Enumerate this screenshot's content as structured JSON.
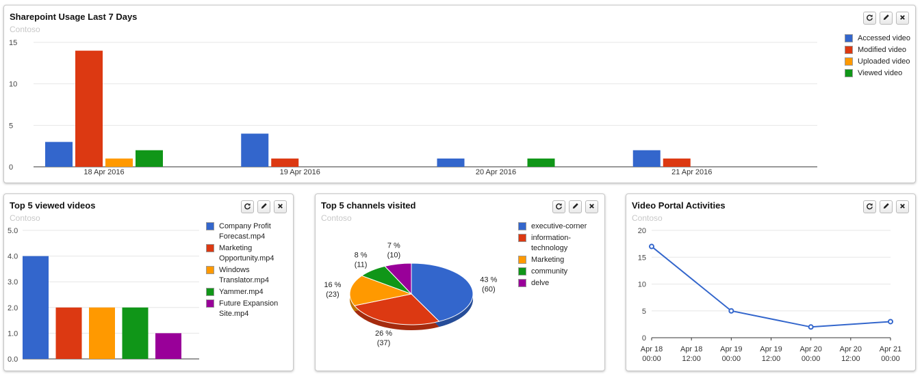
{
  "panels": {
    "usage": {
      "title": "Sharepoint Usage Last 7 Days",
      "subtitle": "Contoso",
      "legend": [
        {
          "label": "Accessed video",
          "color": "#3366cc"
        },
        {
          "label": "Modified video",
          "color": "#dc3912"
        },
        {
          "label": "Uploaded video",
          "color": "#ff9900"
        },
        {
          "label": "Viewed video",
          "color": "#109618"
        }
      ]
    },
    "videos": {
      "title": "Top 5 viewed videos",
      "subtitle": "Contoso",
      "legend": [
        {
          "label": "Company Profit Forecast.mp4",
          "color": "#3366cc"
        },
        {
          "label": "Marketing Opportunity.mp4",
          "color": "#dc3912"
        },
        {
          "label": "Windows Translator.mp4",
          "color": "#ff9900"
        },
        {
          "label": "Yammer.mp4",
          "color": "#109618"
        },
        {
          "label": "Future Expansion Site.mp4",
          "color": "#990099"
        }
      ]
    },
    "channels": {
      "title": "Top 5 channels visited",
      "subtitle": "Contoso",
      "legend": [
        {
          "label": "executive-corner",
          "color": "#3366cc"
        },
        {
          "label": "information-technology",
          "color": "#dc3912"
        },
        {
          "label": "Marketing",
          "color": "#ff9900"
        },
        {
          "label": "community",
          "color": "#109618"
        },
        {
          "label": "delve",
          "color": "#990099"
        }
      ]
    },
    "activities": {
      "title": "Video Portal Activities",
      "subtitle": "Contoso"
    }
  },
  "toolbar_icons": [
    "refresh-icon",
    "edit-icon",
    "close-icon"
  ],
  "chart_data": [
    {
      "type": "bar",
      "title": "Sharepoint Usage Last 7 Days",
      "categories": [
        "18 Apr 2016",
        "19 Apr 2016",
        "20 Apr 2016",
        "21 Apr 2016"
      ],
      "series": [
        {
          "name": "Accessed video",
          "color": "#3366cc",
          "values": [
            3,
            4,
            1,
            2
          ]
        },
        {
          "name": "Modified video",
          "color": "#dc3912",
          "values": [
            14,
            1,
            0,
            1
          ]
        },
        {
          "name": "Uploaded video",
          "color": "#ff9900",
          "values": [
            1,
            0,
            0,
            0
          ]
        },
        {
          "name": "Viewed video",
          "color": "#109618",
          "values": [
            2,
            0,
            1,
            0
          ]
        }
      ],
      "yticks": [
        "0",
        "5",
        "10",
        "15"
      ],
      "ylim": [
        0,
        15
      ],
      "grid": true,
      "legend": "right"
    },
    {
      "type": "bar",
      "title": "Top 5 viewed videos",
      "categories": [
        "Company Profit Forecast.mp4",
        "Marketing Opportunity.mp4",
        "Windows Translator.mp4",
        "Yammer.mp4",
        "Future Expansion Site.mp4"
      ],
      "values": [
        4,
        2,
        2,
        2,
        1
      ],
      "colors": [
        "#3366cc",
        "#dc3912",
        "#ff9900",
        "#109618",
        "#990099"
      ],
      "yticks": [
        "0.0",
        "1.0",
        "2.0",
        "3.0",
        "4.0",
        "5.0"
      ],
      "ylim": [
        0,
        5
      ],
      "grid": true,
      "legend": "right"
    },
    {
      "type": "pie",
      "title": "Top 5 channels visited",
      "slices": [
        {
          "label": "executive-corner",
          "value": 60,
          "pct": "43 %",
          "count": "(60)",
          "color": "#3366cc"
        },
        {
          "label": "information-technology",
          "value": 37,
          "pct": "26 %",
          "count": "(37)",
          "color": "#dc3912"
        },
        {
          "label": "Marketing",
          "value": 23,
          "pct": "16 %",
          "count": "(23)",
          "color": "#ff9900"
        },
        {
          "label": "community",
          "value": 11,
          "pct": "8 %",
          "count": "(11)",
          "color": "#109618"
        },
        {
          "label": "delve",
          "value": 10,
          "pct": "7 %",
          "count": "(10)",
          "color": "#990099"
        }
      ],
      "legend": "right"
    },
    {
      "type": "line",
      "title": "Video Portal Activities",
      "x": [
        "Apr 18 00:00",
        "Apr 19 00:00",
        "Apr 20 00:00",
        "Apr 21 00:00"
      ],
      "values": [
        17,
        5,
        2,
        3
      ],
      "color": "#3366cc",
      "xticks": [
        [
          "Apr 18",
          "00:00"
        ],
        [
          "Apr 18",
          "12:00"
        ],
        [
          "Apr 19",
          "00:00"
        ],
        [
          "Apr 19",
          "12:00"
        ],
        [
          "Apr 20",
          "00:00"
        ],
        [
          "Apr 20",
          "12:00"
        ],
        [
          "Apr 21",
          "00:00"
        ]
      ],
      "yticks": [
        "0",
        "5",
        "10",
        "15",
        "20"
      ],
      "ylim": [
        0,
        20
      ],
      "grid": true
    }
  ]
}
